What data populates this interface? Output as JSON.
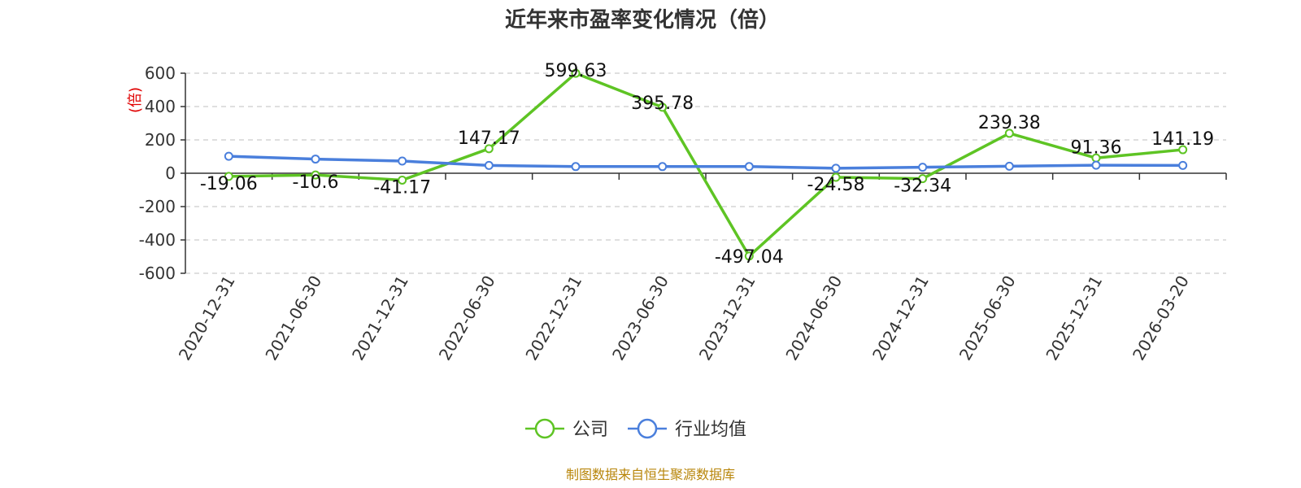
{
  "chart_data": {
    "type": "line",
    "title": "近年来市盈率变化情况（倍）",
    "ylabel": "(倍)",
    "xlabel": "",
    "ylim": [
      -600,
      600
    ],
    "yticks": [
      600,
      400,
      200,
      0,
      -200,
      -400,
      -600
    ],
    "grid": true,
    "legend_position": "bottom",
    "categories": [
      "2020-12-31",
      "2021-06-30",
      "2021-12-31",
      "2022-06-30",
      "2022-12-31",
      "2023-06-30",
      "2023-12-31",
      "2024-06-30",
      "2024-12-31",
      "2025-06-30",
      "2025-12-31",
      "2026-03-20"
    ],
    "series": [
      {
        "name": "公司",
        "color": "#5ec424",
        "values": [
          -19.06,
          -10.6,
          -41.17,
          147.17,
          599.63,
          395.78,
          -497.04,
          -24.58,
          -32.34,
          239.38,
          91.36,
          141.19
        ],
        "labels": [
          "-19.06",
          "-10.6",
          "-41.17",
          "147.17",
          "599.63",
          "395.78",
          "-497.04",
          "-24.58",
          "-32.34",
          "239.38",
          "91.36",
          "141.19"
        ]
      },
      {
        "name": "行业均值",
        "color": "#4a7fdc",
        "values": [
          102,
          85,
          73,
          47,
          40,
          40,
          40,
          30,
          36,
          42,
          48,
          47
        ]
      }
    ],
    "source": "制图数据来自恒生聚源数据库"
  }
}
